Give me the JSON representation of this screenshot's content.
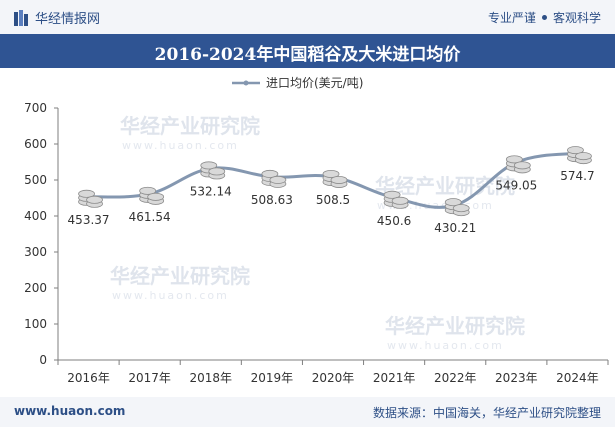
{
  "header": {
    "brand": "华经情报网",
    "slogan_left": "专业严谨",
    "slogan_right": "客观科学"
  },
  "title": "2016-2024年中国稻谷及大米进口均价",
  "footer": {
    "site": "www.huaon.com",
    "source": "数据来源：中国海关，华经产业研究院整理"
  },
  "watermark": {
    "text": "华经产业研究院",
    "url": "www.huaon.com"
  },
  "colors": {
    "header_bg": "#f3f5f9",
    "title_bg": "#2f5493",
    "brand_text": "#2d4f86",
    "line": "#8497b0",
    "coin_fill": "#d9d9d9",
    "coin_stroke": "#8c8c8c"
  },
  "chart_data": {
    "type": "line",
    "title": "2016-2024年中国稻谷及大米进口均价",
    "categories": [
      "2016年",
      "2017年",
      "2018年",
      "2019年",
      "2020年",
      "2021年",
      "2022年",
      "2023年",
      "2024年"
    ],
    "series": [
      {
        "name": "进口均价(美元/吨)",
        "values": [
          453.37,
          461.54,
          532.14,
          508.63,
          508.5,
          450.6,
          430.21,
          549.05,
          574.7
        ],
        "labels": [
          "453.37",
          "461.54",
          "532.14",
          "508.63",
          "508.5",
          "450.6",
          "430.21",
          "549.05",
          "574.7"
        ]
      }
    ],
    "yticks": [
      "0",
      "100",
      "200",
      "300",
      "400",
      "500",
      "600",
      "700"
    ],
    "ylim": [
      0,
      700
    ],
    "grid": false,
    "legend": "top-center",
    "xlabel": "",
    "ylabel": ""
  }
}
